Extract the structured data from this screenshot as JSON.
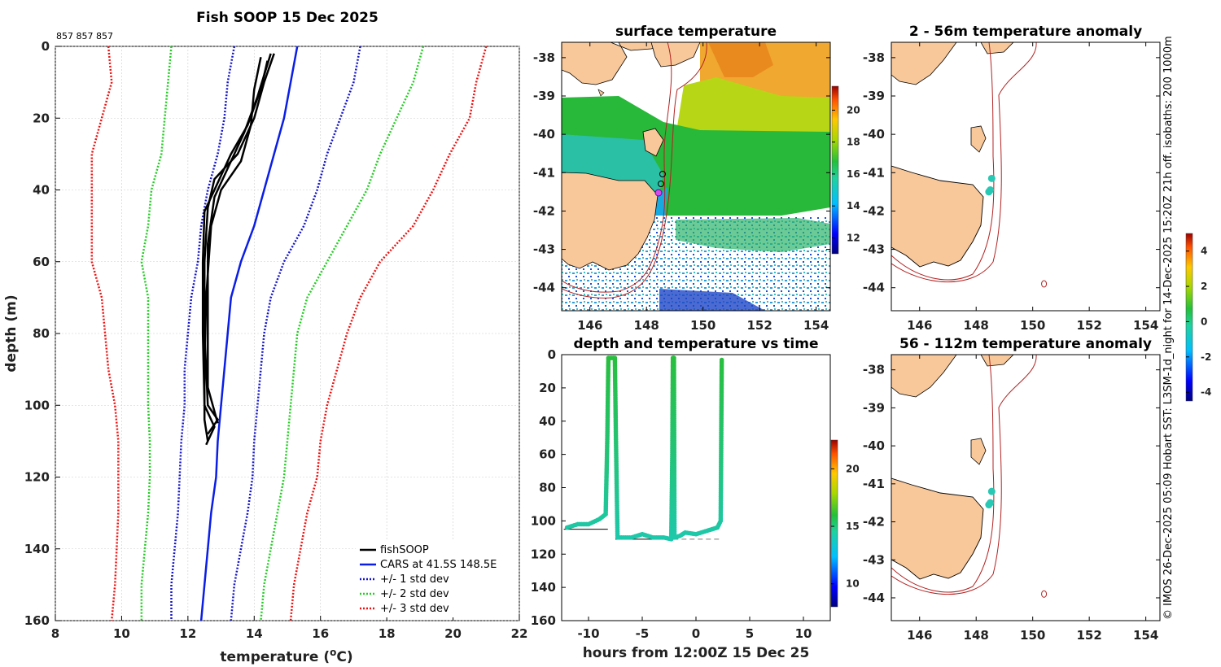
{
  "header": {
    "main_title": "Fish SOOP 15 Dec 2025",
    "ids": "857 857 857"
  },
  "side_caption": "© IMOS 26-Dec-2025 05:09 Hobart SST: L3SM-1d_night for 14-Dec-2025 15:20Z 21h off. isobaths: 200  1000m",
  "colors": {
    "land": "#f8c89a",
    "isobath": "#b22222",
    "cars": "#0a1ee6",
    "sd1": "#1414c8",
    "sd2": "#22cc22",
    "sd3": "#ee1111",
    "fish": "#000000",
    "track": "#29c8b4"
  },
  "chart_data": [
    {
      "id": "profile",
      "type": "line",
      "title": "Fish SOOP 15 Dec 2025",
      "xlabel": "temperature (oC)",
      "ylabel": "depth (m)",
      "xlim": [
        8,
        22
      ],
      "ylim": [
        0,
        160
      ],
      "y_reversed": true,
      "xticks": [
        8,
        10,
        12,
        14,
        16,
        18,
        20,
        22
      ],
      "yticks": [
        0,
        20,
        40,
        60,
        80,
        100,
        120,
        140,
        160
      ],
      "legend_position": "bottom-right",
      "depths": [
        0,
        10,
        20,
        30,
        40,
        50,
        60,
        70,
        80,
        90,
        100,
        110,
        120,
        130,
        140,
        150,
        160
      ],
      "series": [
        {
          "name": "CARS at 41.5S 148.5E",
          "style": "solid",
          "color_key": "cars",
          "values": [
            15.3,
            15.1,
            14.9,
            14.6,
            14.3,
            14.0,
            13.6,
            13.3,
            13.2,
            13.1,
            13.0,
            12.9,
            12.85,
            12.7,
            12.6,
            12.5,
            12.4
          ]
        },
        {
          "name": "+/- 1 std dev",
          "style": "dotted",
          "color_key": "sd1",
          "values": [
            17.2,
            17.0,
            16.6,
            16.2,
            15.9,
            15.5,
            14.9,
            14.5,
            14.3,
            14.2,
            14.1,
            14.0,
            13.95,
            13.8,
            13.6,
            13.4,
            13.3
          ]
        },
        {
          "name": "+/- 2 std dev",
          "style": "dotted",
          "color_key": "sd2",
          "values": [
            19.1,
            18.8,
            18.3,
            17.8,
            17.4,
            16.8,
            16.2,
            15.6,
            15.3,
            15.2,
            15.1,
            15.0,
            14.9,
            14.7,
            14.5,
            14.3,
            14.2
          ]
        },
        {
          "name": "+/- 3 std dev",
          "style": "dotted",
          "color_key": "sd3",
          "values": [
            21.0,
            20.7,
            20.5,
            19.9,
            19.4,
            18.8,
            17.8,
            17.2,
            16.8,
            16.5,
            16.2,
            16.0,
            15.9,
            15.6,
            15.4,
            15.2,
            15.1
          ]
        },
        {
          "name": "-1 std dev",
          "style": "dotted",
          "color_key": "sd1",
          "legend": false,
          "values": [
            13.4,
            13.2,
            13.1,
            12.9,
            12.6,
            12.4,
            12.3,
            12.1,
            12.0,
            11.9,
            11.9,
            11.8,
            11.75,
            11.7,
            11.6,
            11.5,
            11.5
          ]
        },
        {
          "name": "-2 std dev",
          "style": "dotted",
          "color_key": "sd2",
          "legend": false,
          "values": [
            11.5,
            11.4,
            11.3,
            11.2,
            10.9,
            10.8,
            10.6,
            10.8,
            10.8,
            10.8,
            10.8,
            10.85,
            10.85,
            10.8,
            10.7,
            10.6,
            10.6
          ]
        },
        {
          "name": "-3 std dev",
          "style": "dotted",
          "color_key": "sd3",
          "legend": false,
          "values": [
            9.6,
            9.7,
            9.4,
            9.1,
            9.1,
            9.1,
            9.1,
            9.4,
            9.5,
            9.6,
            9.8,
            9.9,
            9.9,
            9.9,
            9.85,
            9.8,
            9.7
          ]
        }
      ],
      "casts": [
        {
          "depths": [
            2,
            10,
            20,
            30,
            37,
            45,
            60,
            80,
            100,
            104,
            108
          ],
          "values": [
            14.6,
            14.3,
            14.0,
            13.5,
            12.8,
            12.6,
            12.5,
            12.5,
            12.6,
            12.9,
            12.6
          ]
        },
        {
          "depths": [
            3,
            12,
            22,
            32,
            40,
            50,
            70,
            90,
            104,
            110
          ],
          "values": [
            14.2,
            14.0,
            13.9,
            13.6,
            13.0,
            12.7,
            12.55,
            12.5,
            12.5,
            12.6
          ]
        },
        {
          "depths": [
            4,
            12,
            22,
            30,
            38,
            46,
            60,
            80,
            100,
            106,
            111
          ],
          "values": [
            14.4,
            14.2,
            13.8,
            13.3,
            12.9,
            12.5,
            12.45,
            12.45,
            12.5,
            12.8,
            12.55
          ]
        },
        {
          "depths": [
            2,
            14,
            24,
            34,
            42,
            55,
            75,
            95,
            105
          ],
          "values": [
            14.5,
            14.1,
            13.7,
            13.2,
            12.8,
            12.6,
            12.6,
            12.6,
            12.9
          ]
        }
      ],
      "legend": [
        "fishSOOP",
        "CARS at 41.5S 148.5E",
        "+/- 1 std dev",
        "+/- 2 std dev",
        "+/- 3 std dev"
      ]
    },
    {
      "id": "sst_map",
      "type": "heatmap",
      "title": "surface temperature",
      "xticks": [
        146,
        148,
        150,
        152,
        154
      ],
      "yticks": [
        -38,
        -39,
        -40,
        -41,
        -42,
        -43,
        -44
      ],
      "xlim": [
        145,
        154.5
      ],
      "ylim": [
        -44.6,
        -37.6
      ],
      "colorbar_range": [
        11,
        21.5
      ],
      "colorbar_ticks": [
        12,
        14,
        16,
        18,
        20
      ]
    },
    {
      "id": "time_series",
      "type": "scatter",
      "title": "depth and temperature vs time",
      "xlabel": "hours from 12:00Z 15 Dec 25",
      "xlim": [
        -12.5,
        12.5
      ],
      "ylim": [
        0,
        160
      ],
      "y_reversed": true,
      "xticks": [
        -10,
        -5,
        0,
        5,
        10
      ],
      "yticks": [
        0,
        20,
        40,
        60,
        80,
        100,
        120,
        140,
        160
      ],
      "colorbar_range": [
        8,
        22.5
      ],
      "colorbar_ticks": [
        10,
        15,
        20
      ],
      "track": {
        "hours": [
          -12,
          -11,
          -10,
          -9,
          -8.4,
          -8.25,
          -8.15,
          -7.55,
          -7.45,
          -7.3,
          -6,
          -5,
          -4,
          -3,
          -2.3,
          -2.2,
          -2.15,
          -2.05,
          -2.0,
          -1.5,
          -1,
          0,
          1,
          2,
          2.3,
          2.4
        ],
        "depth": [
          104,
          102,
          102,
          99,
          96,
          50,
          2,
          2,
          50,
          110,
          110,
          108,
          110,
          110,
          111,
          60,
          2,
          2,
          110,
          109,
          107,
          108,
          106,
          104,
          100,
          2
        ]
      },
      "seafloor_segments": [
        {
          "x": [
            -12.3,
            -8.2
          ],
          "y": 105,
          "style": "solid"
        },
        {
          "x": [
            -7.5,
            -2.1
          ],
          "y": 111,
          "style": "solid"
        },
        {
          "x": [
            -2.1,
            2.4
          ],
          "y": 111,
          "style": "dashed"
        }
      ]
    },
    {
      "id": "anom_map_1",
      "type": "heatmap",
      "title": "2 - 56m temperature anomaly",
      "xticks": [
        146,
        148,
        150,
        152,
        154
      ],
      "yticks": [
        -38,
        -39,
        -40,
        -41,
        -42,
        -43,
        -44
      ],
      "xlim": [
        145,
        154.5
      ],
      "ylim": [
        -44.6,
        -37.6
      ],
      "points": [
        {
          "lon": 148.55,
          "lat": -41.15
        },
        {
          "lon": 148.5,
          "lat": -41.45
        },
        {
          "lon": 148.45,
          "lat": -41.5
        }
      ]
    },
    {
      "id": "anom_map_2",
      "type": "heatmap",
      "title": "56 - 112m temperature anomaly",
      "xticks": [
        146,
        148,
        150,
        152,
        154
      ],
      "yticks": [
        -38,
        -39,
        -40,
        -41,
        -42,
        -43,
        -44
      ],
      "xlim": [
        145,
        154.5
      ],
      "ylim": [
        -44.6,
        -37.6
      ],
      "points": [
        {
          "lon": 148.55,
          "lat": -41.2
        },
        {
          "lon": 148.5,
          "lat": -41.5
        },
        {
          "lon": 148.45,
          "lat": -41.55
        }
      ]
    },
    {
      "id": "anomaly_colorbar",
      "type": "heatmap",
      "colorbar_range": [
        -4.5,
        5
      ],
      "colorbar_ticks": [
        -4,
        -2,
        0,
        2,
        4
      ]
    }
  ]
}
